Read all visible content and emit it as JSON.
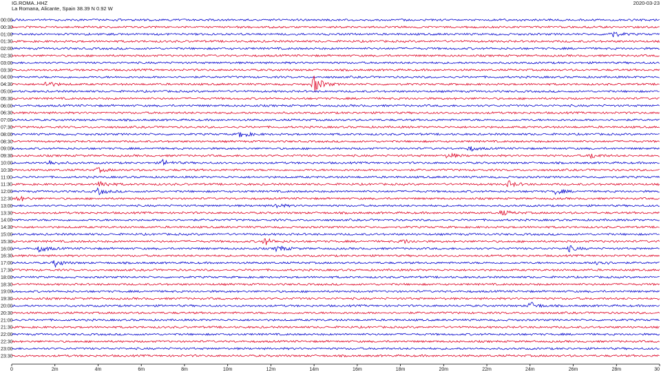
{
  "header": {
    "station": "IG.ROMA..HHZ",
    "location": "La Romana, Alicante, Spain  38.39 N 0.92 W",
    "date": "2020-03-23"
  },
  "colors": {
    "odd_trace": "#0000cc",
    "even_trace": "#dd0022",
    "axis": "#000000"
  },
  "chart_data": {
    "type": "line",
    "title": "IG.ROMA..HHZ",
    "xlabel": "",
    "ylabel": "",
    "x_unit": "minutes",
    "xlim": [
      0,
      30
    ],
    "x_ticks": [
      "0",
      "2m",
      "4m",
      "6m",
      "8m",
      "10m",
      "12m",
      "14m",
      "16m",
      "18m",
      "20m",
      "22m",
      "24m",
      "26m",
      "28m",
      "30"
    ],
    "row_labels": [
      "00:00",
      "00:30",
      "01:00",
      "01:30",
      "02:00",
      "02:30",
      "03:00",
      "03:30",
      "04:00",
      "04:30",
      "05:00",
      "05:30",
      "06:00",
      "06:30",
      "07:00",
      "07:30",
      "08:00",
      "08:30",
      "09:00",
      "09:30",
      "10:00",
      "10:30",
      "11:00",
      "11:30",
      "12:00",
      "12:30",
      "13:00",
      "13:30",
      "14:00",
      "14:30",
      "15:00",
      "15:30",
      "16:00",
      "16:30",
      "17:00",
      "17:30",
      "18:00",
      "18:30",
      "19:00",
      "19:30",
      "20:00",
      "20:30",
      "21:00",
      "21:30",
      "22:00",
      "22:30",
      "23:00",
      "23:30"
    ],
    "row_colors": [
      "blue",
      "red",
      "blue",
      "red",
      "blue",
      "red",
      "blue",
      "red",
      "blue",
      "red",
      "blue",
      "red",
      "blue",
      "red",
      "blue",
      "red",
      "blue",
      "red",
      "blue",
      "red",
      "blue",
      "red",
      "blue",
      "red",
      "blue",
      "red",
      "blue",
      "red",
      "blue",
      "red",
      "blue",
      "red",
      "blue",
      "red",
      "blue",
      "red",
      "blue",
      "red",
      "blue",
      "red",
      "blue",
      "red",
      "blue",
      "red",
      "blue",
      "red",
      "blue",
      "red"
    ],
    "grid": false,
    "events": [
      {
        "row": "01:00",
        "minute": 27.7,
        "amplitude": 1.8
      },
      {
        "row": "04:30",
        "minute": 1.6,
        "amplitude": 1.4
      },
      {
        "row": "04:30",
        "minute": 14.0,
        "amplitude": 4.0
      },
      {
        "row": "08:00",
        "minute": 10.6,
        "amplitude": 1.5
      },
      {
        "row": "09:00",
        "minute": 21.2,
        "amplitude": 1.0
      },
      {
        "row": "09:30",
        "minute": 20.2,
        "amplitude": 1.2
      },
      {
        "row": "09:30",
        "minute": 26.8,
        "amplitude": 1.3
      },
      {
        "row": "10:00",
        "minute": 1.7,
        "amplitude": 1.2
      },
      {
        "row": "10:00",
        "minute": 7.0,
        "amplitude": 1.2
      },
      {
        "row": "10:30",
        "minute": 4.0,
        "amplitude": 0.9
      },
      {
        "row": "11:30",
        "minute": 4.1,
        "amplitude": 1.6
      },
      {
        "row": "11:30",
        "minute": 23.0,
        "amplitude": 1.4
      },
      {
        "row": "12:00",
        "minute": 4.0,
        "amplitude": 1.4
      },
      {
        "row": "12:00",
        "minute": 25.2,
        "amplitude": 1.2
      },
      {
        "row": "12:30",
        "minute": 0.3,
        "amplitude": 1.3
      },
      {
        "row": "13:00",
        "minute": 12.2,
        "amplitude": 1.0
      },
      {
        "row": "13:30",
        "minute": 22.7,
        "amplitude": 1.1
      },
      {
        "row": "15:30",
        "minute": 11.7,
        "amplitude": 1.6
      },
      {
        "row": "15:30",
        "minute": 18.1,
        "amplitude": 0.9
      },
      {
        "row": "16:00",
        "minute": 1.3,
        "amplitude": 1.5
      },
      {
        "row": "16:00",
        "minute": 12.3,
        "amplitude": 1.5
      },
      {
        "row": "16:00",
        "minute": 25.8,
        "amplitude": 1.2
      },
      {
        "row": "17:00",
        "minute": 2.0,
        "amplitude": 1.6
      },
      {
        "row": "17:00",
        "minute": 27.1,
        "amplitude": 1.5
      },
      {
        "row": "20:00",
        "minute": 24.0,
        "amplitude": 1.7
      }
    ]
  }
}
